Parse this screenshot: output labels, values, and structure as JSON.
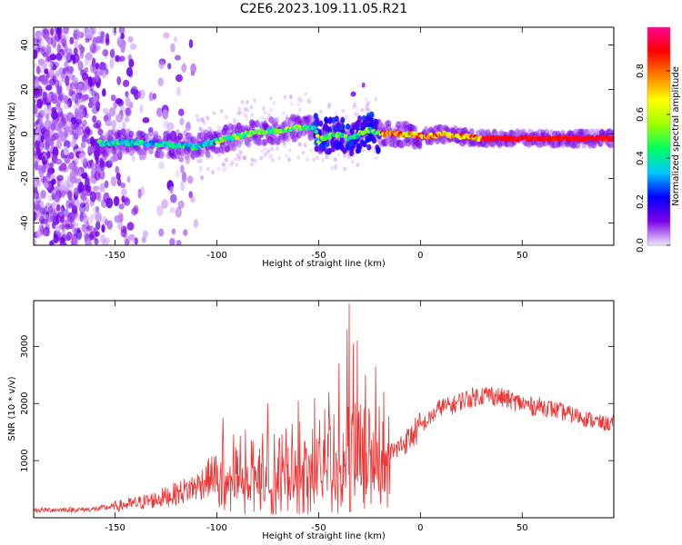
{
  "figure_title": "C2E6.2023.109.11.05.R21",
  "chart_data": [
    {
      "type": "heatmap",
      "title": "",
      "xlabel": "Height of straight line (km)",
      "ylabel": "Frequency (Hz)",
      "xlim": [
        -190,
        95
      ],
      "ylim": [
        -50,
        48
      ],
      "xticks": [
        -150,
        -100,
        -50,
        0,
        50
      ],
      "yticks": [
        -40,
        -20,
        0,
        20,
        40
      ],
      "grid": false,
      "ridge": {
        "x": [
          -158,
          -150,
          -140,
          -130,
          -120,
          -110,
          -100,
          -90,
          -80,
          -70,
          -60,
          -52,
          -50,
          -45,
          -40,
          -35,
          -30,
          -25,
          -20,
          -15,
          -10,
          -5,
          0,
          5,
          10,
          20,
          30,
          50,
          70,
          92
        ],
        "y": [
          -4,
          -4,
          -4,
          -4.5,
          -5,
          -6,
          -3,
          -1,
          1,
          1.5,
          3,
          3,
          -3,
          -1,
          0,
          -2,
          0,
          2,
          0,
          0,
          0,
          0,
          -1,
          -1,
          0,
          -1,
          -2,
          -2,
          -2,
          -2
        ]
      },
      "colorbar": {
        "label": "Normalized spectral amplitude",
        "range": [
          0,
          1
        ],
        "ticks": [
          "0.0",
          "0.2",
          "0.4",
          "0.6",
          "0.8"
        ],
        "colors": [
          "#f0e6ff",
          "#7a00e6",
          "#0000ff",
          "#00c8ff",
          "#00ff60",
          "#a0ff00",
          "#ffff00",
          "#ff8000",
          "#ff0000",
          "#ff0090"
        ]
      }
    },
    {
      "type": "line",
      "title": "",
      "xlabel": "Height of straight line (km)",
      "ylabel": "SNR (10 * v/v)",
      "xlim": [
        -190,
        95
      ],
      "ylim": [
        0,
        3800
      ],
      "xticks": [
        -150,
        -100,
        -50,
        0,
        50
      ],
      "yticks": [
        1000,
        2000,
        3000
      ],
      "grid": false,
      "series": [
        {
          "color": "#ee3333",
          "x": [
            -190,
            -180,
            -170,
            -160,
            -150,
            -140,
            -130,
            -120,
            -110,
            -100,
            -95,
            -90,
            -85,
            -80,
            -75,
            -70,
            -65,
            -60,
            -55,
            -50,
            -45,
            -40,
            -35,
            -30,
            -25,
            -20,
            -15,
            -10,
            -5,
            0,
            5,
            10,
            15,
            20,
            25,
            30,
            35,
            40,
            45,
            50,
            55,
            60,
            65,
            70,
            75,
            80,
            85,
            90,
            95
          ],
          "y": [
            130,
            140,
            140,
            150,
            200,
            250,
            320,
            420,
            550,
            800,
            850,
            900,
            950,
            900,
            900,
            950,
            1000,
            1050,
            1050,
            1150,
            1150,
            1200,
            1250,
            1200,
            1250,
            1250,
            1100,
            1250,
            1400,
            1600,
            1750,
            1950,
            1950,
            2050,
            2100,
            2150,
            2150,
            2100,
            2050,
            2000,
            1950,
            1950,
            1900,
            1850,
            1800,
            1750,
            1700,
            1650,
            1650
          ]
        }
      ],
      "peaks": [
        [
          -97,
          1750
        ],
        [
          -75,
          2000
        ],
        [
          -60,
          2050
        ],
        [
          -52,
          2100
        ],
        [
          -45,
          2200
        ],
        [
          -40,
          2700
        ],
        [
          -36,
          3300
        ],
        [
          -35,
          3750
        ],
        [
          -33,
          3050
        ],
        [
          -31,
          3100
        ],
        [
          -27,
          2500
        ],
        [
          -22,
          2650
        ],
        [
          -18,
          2200
        ]
      ]
    }
  ]
}
